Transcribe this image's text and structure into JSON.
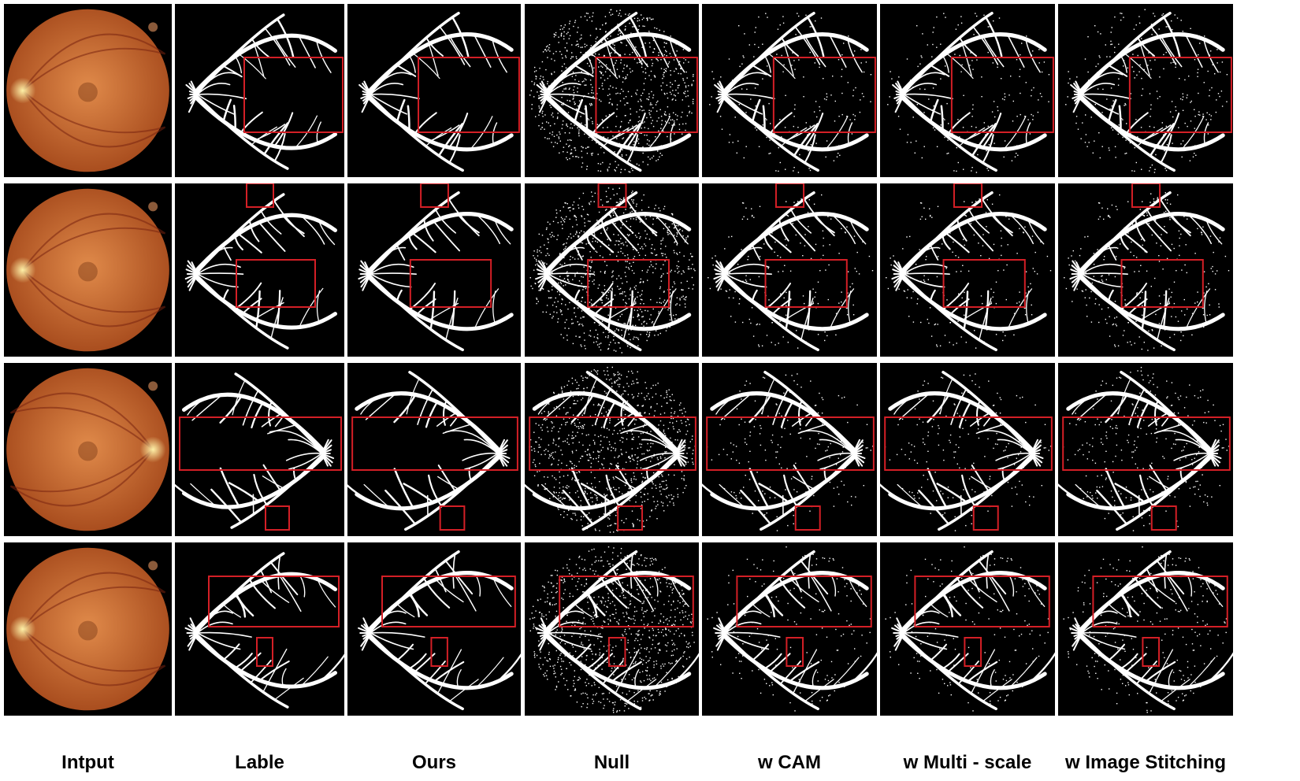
{
  "figure": {
    "row_count": 4,
    "columns": [
      {
        "caption": "Intput",
        "kind": "fundus"
      },
      {
        "caption": "Lable",
        "kind": "vessel",
        "noise": 0
      },
      {
        "caption": "Ours",
        "kind": "vessel",
        "noise": 0
      },
      {
        "caption": "Null",
        "kind": "vessel",
        "noise": 1
      },
      {
        "caption": "w CAM",
        "kind": "vessel",
        "noise": 0.2
      },
      {
        "caption": "w Multi - scale",
        "kind": "vessel",
        "noise": 0.2
      },
      {
        "caption": "w Image Stitching",
        "kind": "vessel",
        "noise": 0.3
      }
    ],
    "colors": {
      "background": "#000000",
      "vessel": "#ffffff",
      "highlight_box": "#d41f26",
      "fundus_center": "#e08a4a",
      "fundus_edge": "#a64a1c",
      "optic_disc": "#fff2a8"
    }
  }
}
